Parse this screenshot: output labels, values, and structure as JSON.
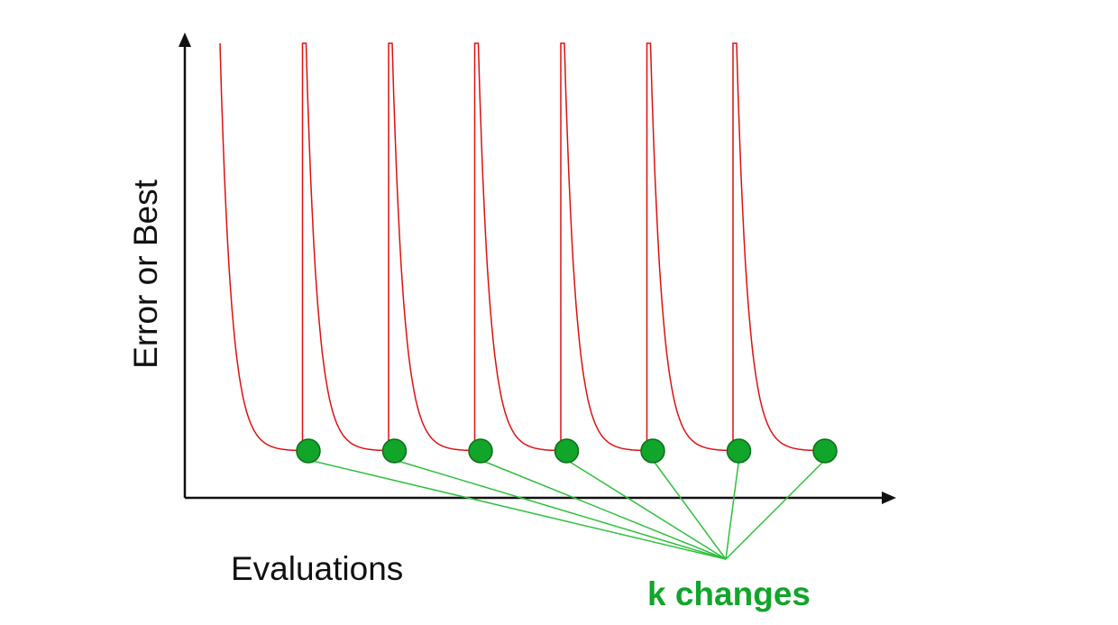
{
  "y_axis_label": "Error or Best",
  "x_axis_label": "Evaluations",
  "annotation_label": "k changes",
  "restart_count": 7,
  "colors": {
    "axis": "#111111",
    "curve": "#dd1111",
    "marker_fill": "#11a52a",
    "marker_stroke": "#0b6e1a",
    "connector": "#2fbf3c",
    "annotation": "#11a52a"
  }
}
